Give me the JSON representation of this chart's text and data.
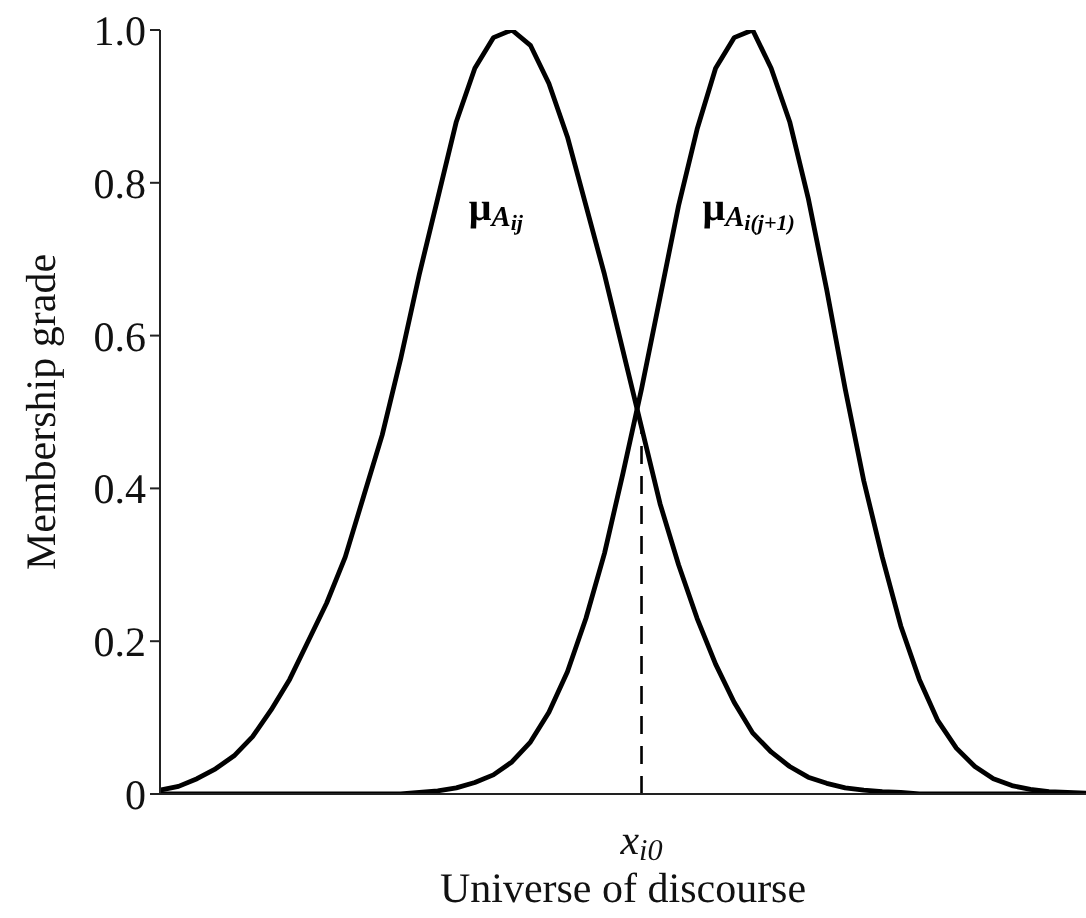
{
  "chart_data": {
    "type": "line",
    "xlabel": "Universe of discourse",
    "ylabel": "Membership grade",
    "categories": [
      null,
      null,
      null,
      null,
      null,
      null,
      null,
      null,
      null,
      null,
      null,
      null,
      null,
      null,
      null,
      null,
      null,
      null,
      null,
      null,
      null,
      null,
      null,
      null,
      null,
      null,
      "x$_{i0}$",
      null,
      null,
      null,
      null,
      null,
      null,
      null,
      null,
      null,
      null,
      null,
      null,
      null,
      null,
      null,
      null,
      null,
      null,
      null,
      null,
      null,
      null,
      null,
      null
    ],
    "ylim": [
      0,
      1
    ],
    "yticks": [
      {
        "value": 0,
        "label": "0"
      },
      {
        "value": 0.2,
        "label": "0.2"
      },
      {
        "value": 0.4,
        "label": "0.4"
      },
      {
        "value": 0.6,
        "label": "0.6"
      },
      {
        "value": 0.8,
        "label": "0.8"
      },
      {
        "value": 1,
        "label": "1.0"
      }
    ],
    "series": [
      {
        "name": "μ$_{A}$$_{ij}$",
        "color": "#000000",
        "values": [
          0.005,
          0.01,
          0.02,
          0.033,
          0.05,
          0.075,
          0.11,
          0.15,
          0.2,
          0.25,
          0.31,
          0.39,
          0.47,
          0.57,
          0.68,
          0.78,
          0.88,
          0.95,
          0.99,
          1.0,
          0.98,
          0.93,
          0.86,
          0.77,
          0.68,
          0.58,
          0.48,
          0.38,
          0.3,
          0.23,
          0.17,
          0.12,
          0.08,
          0.055,
          0.036,
          0.022,
          0.014,
          0.008,
          0.005,
          0.003,
          0.002,
          0,
          0,
          0,
          0,
          0,
          0,
          0,
          0,
          0,
          0
        ]
      },
      {
        "name": "μ$_{A}$$_{i(j+1)}$",
        "color": "#000000",
        "values": [
          0,
          0,
          0,
          0,
          0,
          0,
          0,
          0,
          0,
          0,
          0,
          0,
          0,
          0,
          0.002,
          0.004,
          0.008,
          0.015,
          0.025,
          0.042,
          0.068,
          0.107,
          0.16,
          0.23,
          0.315,
          0.42,
          0.53,
          0.65,
          0.77,
          0.87,
          0.95,
          0.99,
          1.0,
          0.95,
          0.88,
          0.78,
          0.66,
          0.53,
          0.41,
          0.31,
          0.22,
          0.15,
          0.096,
          0.06,
          0.036,
          0.02,
          0.011,
          0.006,
          0.003,
          0.002,
          0.001
        ]
      }
    ],
    "ref_lines": [
      {
        "axis": "x",
        "value": "x$_{i0}$",
        "line_style": "dashed",
        "color": "#000000"
      }
    ]
  }
}
